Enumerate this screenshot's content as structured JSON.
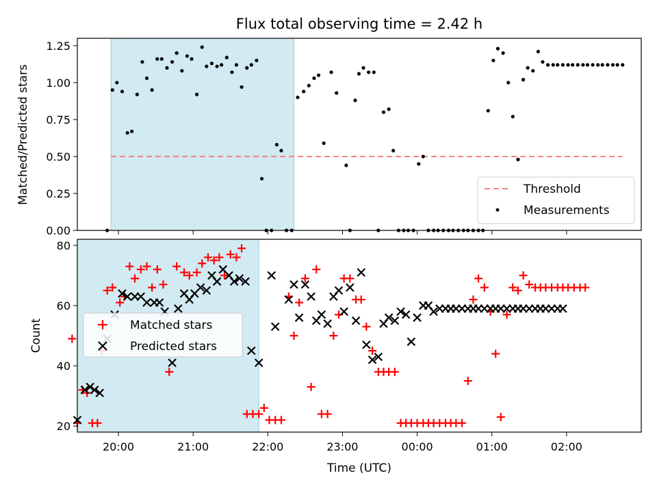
{
  "chart_data": [
    {
      "type": "scatter",
      "title": "Flux total observing time = 2.42 h",
      "xlabel": "",
      "ylabel": "Matched/Predicted stars",
      "xlim": [
        -0.55,
        7.0
      ],
      "ylim": [
        0,
        1.3
      ],
      "ytick_labels": [
        "0.00",
        "0.25",
        "0.50",
        "0.75",
        "1.00",
        "1.25"
      ],
      "yticks": [
        0,
        0.25,
        0.5,
        0.75,
        1.0,
        1.25
      ],
      "shaded_span": [
        -0.1,
        2.35
      ],
      "threshold": {
        "name": "Threshold",
        "value": 0.5,
        "x_range": [
          -0.1,
          6.75
        ],
        "color": "#f08080"
      },
      "series": [
        {
          "name": "Measurements",
          "color": "#000000",
          "x": [
            -0.15,
            -0.08,
            -0.02,
            0.05,
            0.12,
            0.18,
            0.25,
            0.32,
            0.38,
            0.45,
            0.52,
            0.58,
            0.65,
            0.72,
            0.78,
            0.85,
            0.92,
            0.98,
            1.05,
            1.12,
            1.18,
            1.25,
            1.32,
            1.38,
            1.45,
            1.52,
            1.58,
            1.65,
            1.72,
            1.78,
            1.85,
            1.92,
            1.98,
            2.05,
            2.12,
            2.18,
            2.25,
            2.32,
            2.4,
            2.48,
            2.55,
            2.62,
            2.68,
            2.75,
            2.85,
            2.92,
            3.05,
            3.1,
            3.17,
            3.22,
            3.28,
            3.35,
            3.42,
            3.48,
            3.55,
            3.62,
            3.68,
            3.75,
            3.82,
            3.88,
            3.95,
            4.02,
            4.08,
            4.15,
            4.22,
            4.28,
            4.35,
            4.42,
            4.48,
            4.55,
            4.62,
            4.68,
            4.75,
            4.82,
            4.88,
            4.95,
            5.02,
            5.08,
            5.15,
            5.22,
            5.28,
            5.35,
            5.42,
            5.48,
            5.55,
            5.62,
            5.68,
            5.75,
            5.82,
            5.88,
            5.95,
            6.02,
            6.08,
            6.15,
            6.22,
            6.28,
            6.35,
            6.42,
            6.48,
            6.55,
            6.62,
            6.68,
            6.75
          ],
          "y": [
            0.0,
            0.95,
            1.0,
            0.94,
            0.66,
            0.67,
            0.92,
            1.14,
            1.03,
            0.95,
            1.16,
            1.16,
            1.1,
            1.14,
            1.2,
            1.08,
            1.18,
            1.16,
            0.92,
            1.24,
            1.11,
            1.13,
            1.11,
            1.12,
            1.17,
            1.07,
            1.12,
            0.97,
            1.1,
            1.12,
            1.15,
            0.35,
            0.0,
            0.0,
            0.58,
            0.54,
            0.0,
            0.0,
            0.9,
            0.94,
            0.98,
            1.03,
            1.05,
            0.59,
            1.07,
            0.93,
            0.44,
            0.0,
            0.88,
            1.06,
            1.1,
            1.07,
            1.07,
            0.0,
            0.8,
            0.82,
            0.54,
            0.0,
            0.0,
            0.0,
            0.0,
            0.45,
            0.5,
            0.0,
            0.0,
            0.0,
            0.0,
            0.0,
            0.0,
            0.0,
            0.0,
            0.0,
            0.0,
            0.0,
            0.0,
            0.81,
            1.15,
            1.23,
            1.2,
            1.0,
            0.77,
            0.48,
            1.02,
            1.1,
            1.08,
            1.21,
            1.14,
            1.12,
            1.12,
            1.12,
            1.12,
            1.12,
            1.12,
            1.12,
            1.12,
            1.12,
            1.12,
            1.12,
            1.12,
            1.12,
            1.12,
            1.12,
            1.12
          ]
        }
      ],
      "legend": {
        "location": "lower right",
        "entries": [
          "Threshold",
          "Measurements"
        ]
      }
    },
    {
      "type": "scatter",
      "title": "",
      "xlabel": "Time (UTC)",
      "ylabel": "Count",
      "xlim": [
        -0.55,
        7.0
      ],
      "ylim": [
        18,
        82
      ],
      "yticks": [
        20,
        40,
        60,
        80
      ],
      "ytick_labels": [
        "20",
        "40",
        "60",
        "80"
      ],
      "xticks": [
        0,
        1,
        2,
        3,
        4,
        5,
        6
      ],
      "xtick_labels": [
        "20:00",
        "21:00",
        "22:00",
        "23:00",
        "00:00",
        "01:00",
        "02:00"
      ],
      "shaded_span": [
        -0.55,
        1.88
      ],
      "series": [
        {
          "name": "Matched stars",
          "marker": "plus",
          "color": "#ff0000",
          "x": [
            -0.62,
            -0.55,
            -0.48,
            -0.42,
            -0.35,
            -0.28,
            -0.22,
            -0.15,
            -0.08,
            0.02,
            0.08,
            0.15,
            0.22,
            0.3,
            0.38,
            0.45,
            0.52,
            0.6,
            0.68,
            0.78,
            0.88,
            0.95,
            1.05,
            1.12,
            1.2,
            1.28,
            1.35,
            1.42,
            1.5,
            1.58,
            1.65,
            1.72,
            1.8,
            1.88,
            1.95,
            2.02,
            2.1,
            2.18,
            2.28,
            2.35,
            2.42,
            2.5,
            2.58,
            2.65,
            2.72,
            2.8,
            2.88,
            2.95,
            3.02,
            3.1,
            3.18,
            3.25,
            3.32,
            3.4,
            3.48,
            3.55,
            3.62,
            3.7,
            3.78,
            3.85,
            3.92,
            4.0,
            4.08,
            4.15,
            4.22,
            4.3,
            4.38,
            4.45,
            4.52,
            4.6,
            4.68,
            4.75,
            4.82,
            4.9,
            4.98,
            5.05,
            5.12,
            5.2,
            5.28,
            5.35,
            5.42,
            5.5,
            5.58,
            5.65,
            5.72,
            5.8,
            5.88,
            5.95,
            6.02,
            6.1,
            6.18,
            6.25
          ],
          "y": [
            49,
            21,
            32,
            31,
            21,
            21,
            45,
            65,
            66,
            61,
            63,
            73,
            69,
            72,
            73,
            66,
            72,
            67,
            38,
            73,
            71,
            70,
            71,
            74,
            76,
            75,
            76,
            70,
            77,
            76,
            79,
            24,
            24,
            24,
            26,
            22,
            22,
            22,
            63,
            50,
            61,
            69,
            33,
            72,
            24,
            24,
            50,
            57,
            69,
            69,
            62,
            62,
            53,
            45,
            38,
            38,
            38,
            38,
            21,
            21,
            21,
            21,
            21,
            21,
            21,
            21,
            21,
            21,
            21,
            21,
            35,
            62,
            69,
            66,
            58,
            44,
            23,
            57,
            66,
            65,
            70,
            67,
            66,
            66,
            66,
            66,
            66,
            66,
            66,
            66,
            66,
            66
          ]
        },
        {
          "name": "Predicted stars",
          "marker": "x",
          "color": "#000000",
          "x": [
            -0.55,
            -0.45,
            -0.38,
            -0.32,
            -0.25,
            -0.15,
            -0.05,
            0.05,
            0.12,
            0.22,
            0.3,
            0.38,
            0.48,
            0.55,
            0.62,
            0.72,
            0.8,
            0.88,
            0.95,
            1.02,
            1.1,
            1.18,
            1.25,
            1.32,
            1.4,
            1.48,
            1.55,
            1.62,
            1.7,
            1.78,
            1.88,
            2.05,
            2.1,
            2.28,
            2.35,
            2.42,
            2.5,
            2.58,
            2.65,
            2.72,
            2.8,
            2.88,
            2.95,
            3.02,
            3.1,
            3.18,
            3.25,
            3.32,
            3.4,
            3.48,
            3.55,
            3.62,
            3.7,
            3.78,
            3.85,
            3.92,
            4.0,
            4.08,
            4.15,
            4.22,
            4.3,
            4.38,
            4.45,
            4.52,
            4.6,
            4.68,
            4.75,
            4.82,
            4.9,
            4.98,
            5.05,
            5.12,
            5.2,
            5.28,
            5.35,
            5.42,
            5.5,
            5.58,
            5.65,
            5.72,
            5.8,
            5.88,
            5.95
          ],
          "y": [
            22,
            32,
            33,
            32,
            31,
            49,
            57,
            64,
            63,
            63,
            63,
            61,
            61,
            61,
            58,
            41,
            59,
            64,
            62,
            64,
            66,
            65,
            70,
            68,
            72,
            70,
            68,
            69,
            68,
            45,
            41,
            70,
            53,
            62,
            67,
            56,
            67,
            63,
            55,
            57,
            54,
            63,
            65,
            58,
            66,
            55,
            71,
            47,
            42,
            43,
            54,
            56,
            55,
            58,
            57,
            48,
            56,
            60,
            60,
            58,
            59,
            59,
            59,
            59,
            59,
            59,
            59,
            59,
            59,
            59,
            59,
            59,
            59,
            59,
            59,
            59,
            59,
            59,
            59,
            59,
            59,
            59,
            59
          ]
        }
      ],
      "legend": {
        "location": "center left",
        "entries": [
          "Matched stars",
          "Predicted stars"
        ]
      }
    }
  ]
}
